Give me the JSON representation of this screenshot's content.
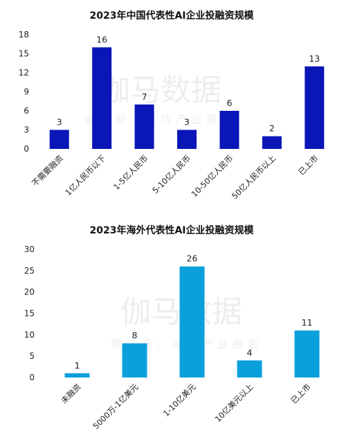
{
  "watermark": {
    "main": "伽马数据",
    "sub": "微信号：游戏产业报告"
  },
  "chart_data": [
    {
      "type": "bar",
      "title": "2023年中国代表性AI企业投融资规模",
      "categories": [
        "不需要融资",
        "1亿人民币以下",
        "1-5亿人民币",
        "5-10亿人民币",
        "10-50亿人民币",
        "50亿人民币以上",
        "已上市"
      ],
      "values": [
        3,
        16,
        7,
        3,
        6,
        2,
        13
      ],
      "ylim": [
        0,
        18
      ],
      "yticks": [
        0,
        3,
        6,
        9,
        12,
        15,
        18
      ],
      "color": "#0a16b8",
      "grid": false,
      "legend": "none"
    },
    {
      "type": "bar",
      "title": "2023年海外代表性AI企业投融资规模",
      "categories": [
        "未融资",
        "5000万-1亿美元",
        "1-10亿美元",
        "10亿美元以上",
        "已上市"
      ],
      "values": [
        1,
        8,
        26,
        4,
        11
      ],
      "ylim": [
        0,
        30
      ],
      "yticks": [
        0,
        5,
        10,
        15,
        20,
        25,
        30
      ],
      "color": "#0aa0dc",
      "grid": false,
      "legend": "none"
    }
  ]
}
